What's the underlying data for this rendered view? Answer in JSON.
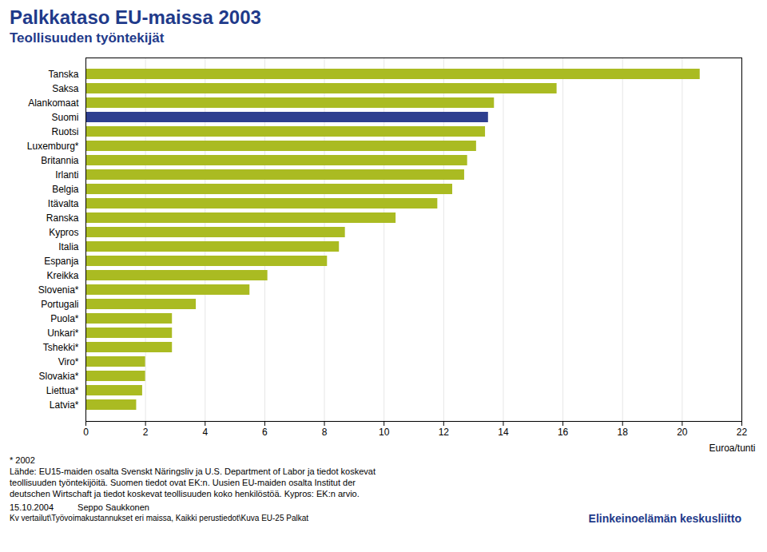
{
  "chart_data": {
    "type": "bar",
    "orientation": "horizontal",
    "title": "Palkkataso EU-maissa 2003",
    "subtitle": "Teollisuuden työntekijät",
    "xlabel": "Euroa/tunti",
    "categories": [
      "Tanska",
      "Saksa",
      "Alankomaat",
      "Suomi",
      "Ruotsi",
      "Luxemburg*",
      "Britannia",
      "Irlanti",
      "Belgia",
      "Itävalta",
      "Ranska",
      "Kypros",
      "Italia",
      "Espanja",
      "Kreikka",
      "Slovenia*",
      "Portugali",
      "Puola*",
      "Unkari*",
      "Tshekki*",
      "Viro*",
      "Slovakia*",
      "Liettua*",
      "Latvia*"
    ],
    "values": [
      20.6,
      15.8,
      13.7,
      13.5,
      13.4,
      13.1,
      12.8,
      12.7,
      12.3,
      11.8,
      10.4,
      8.7,
      8.5,
      8.1,
      6.1,
      5.5,
      3.7,
      2.9,
      2.9,
      2.9,
      2.0,
      2.0,
      1.9,
      1.7
    ],
    "colors": [
      "#AABB22",
      "#AABB22",
      "#AABB22",
      "#2E3F8F",
      "#AABB22",
      "#AABB22",
      "#AABB22",
      "#AABB22",
      "#AABB22",
      "#AABB22",
      "#AABB22",
      "#AABB22",
      "#AABB22",
      "#AABB22",
      "#AABB22",
      "#AABB22",
      "#AABB22",
      "#AABB22",
      "#AABB22",
      "#AABB22",
      "#AABB22",
      "#AABB22",
      "#AABB22",
      "#AABB22"
    ],
    "xlim": [
      0,
      22
    ],
    "xticks": [
      0,
      2,
      4,
      6,
      8,
      10,
      12,
      14,
      16,
      18,
      20,
      22
    ],
    "grid": true,
    "note": "* 2002",
    "footnotes": [
      "Lähde: EU15-maiden osalta Svenskt Näringsliv ja U.S. Department of Labor ja tiedot koskevat",
      "teollisuuden työntekijöitä. Suomen tiedot ovat EK:n. Uusien EU-maiden osalta Institut der",
      "deutschen Wirtschaft ja tiedot koskevat teollisuuden koko henkilöstöä.  Kypros: EK:n arvio."
    ],
    "date": "15.10.2004",
    "author": "Seppo Saukkonen",
    "source_path": "Kv vertailut\\Työvoimakustannukset eri maissa, Kaikki perustiedot\\Kuva EU-25 Palkat",
    "logo": "Elinkeinoelämän keskusliitto"
  }
}
